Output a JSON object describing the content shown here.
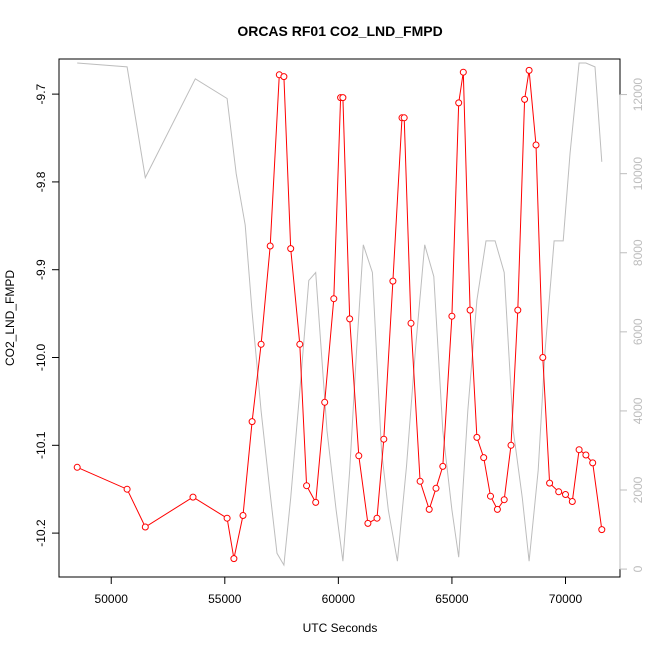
{
  "chart_data": {
    "type": "line",
    "title": "ORCAS RF01 CO2_LND_FMPD",
    "xlabel": "UTC Seconds",
    "ylabel": "CO2_LND_FMPD",
    "xlim": [
      47700,
      72400
    ],
    "ylim": [
      -10.25,
      -9.66
    ],
    "y2lim": [
      -200,
      12900
    ],
    "x_ticks": [
      50000,
      55000,
      60000,
      65000,
      70000
    ],
    "y_ticks": [
      -10.2,
      -10.1,
      -10.0,
      -9.9,
      -9.8,
      -9.7
    ],
    "y2_ticks": [
      0,
      2000,
      4000,
      6000,
      8000,
      10000,
      12000
    ],
    "x_tick_labels": [
      "50000",
      "55000",
      "60000",
      "65000",
      "70000"
    ],
    "y_tick_labels": [
      "-10.2",
      "-10.1",
      "-10.0",
      "-9.9",
      "-9.8",
      "-9.7"
    ],
    "y2_tick_labels": [
      "0",
      "2000",
      "4000",
      "6000",
      "8000",
      "10000",
      "12000"
    ],
    "colors": {
      "primary": "#ff0000",
      "secondary": "#bdbdbd"
    },
    "series": [
      {
        "axis": "left",
        "style": "line+markers",
        "color": "#ff0000",
        "x": [
          48500,
          50700,
          51500,
          53600,
          55100,
          55400,
          55800,
          56200,
          56600,
          57000,
          57400,
          57600,
          57900,
          58300,
          58600,
          59000,
          59400,
          59800,
          60100,
          60200,
          60500,
          60900,
          61300,
          61700,
          62000,
          62400,
          62800,
          62900,
          63200,
          63600,
          64000,
          64300,
          64600,
          65000,
          65300,
          65500,
          65800,
          66100,
          66400,
          66700,
          67000,
          67300,
          67600,
          67900,
          68200,
          68400,
          68700,
          69000,
          69300,
          69700,
          70000,
          70300,
          70600,
          70900,
          71200,
          71600
        ],
        "y": [
          -10.125,
          -10.15,
          -10.193,
          -10.159,
          -10.183,
          -10.229,
          -10.18,
          -10.073,
          -9.985,
          -9.873,
          -9.678,
          -9.68,
          -9.876,
          -9.985,
          -10.146,
          -10.165,
          -10.051,
          -9.933,
          -9.704,
          -9.704,
          -9.956,
          -10.112,
          -10.189,
          -10.183,
          -10.093,
          -9.913,
          -9.727,
          -9.727,
          -9.961,
          -10.141,
          -10.173,
          -10.149,
          -10.124,
          -9.953,
          -9.71,
          -9.675,
          -9.946,
          -10.091,
          -10.114,
          -10.158,
          -10.173,
          -10.162,
          -10.1,
          -9.946,
          -9.706,
          -9.673,
          -9.758,
          -10.0,
          -10.143,
          -10.153,
          -10.156,
          -10.164,
          -10.105,
          -10.111,
          -10.12,
          -10.196
        ]
      },
      {
        "axis": "right",
        "style": "line",
        "color": "#bdbdbd",
        "x": [
          48500,
          50700,
          51500,
          53700,
          55100,
          55500,
          55900,
          56200,
          56600,
          57000,
          57300,
          57600,
          57900,
          58300,
          58700,
          59000,
          59500,
          59900,
          60200,
          60500,
          60800,
          61100,
          61500,
          61900,
          62200,
          62600,
          63000,
          63400,
          63800,
          64200,
          64600,
          65000,
          65300,
          65700,
          66100,
          66500,
          66900,
          67300,
          67700,
          68100,
          68400,
          68800,
          69100,
          69500,
          69900,
          70200,
          70600,
          70900,
          71300,
          71600
        ],
        "y": [
          12800,
          12700,
          9900,
          12400,
          11900,
          10000,
          8700,
          6500,
          4000,
          1900,
          400,
          100,
          1800,
          4500,
          7300,
          7500,
          3500,
          1500,
          200,
          2500,
          5500,
          8200,
          7500,
          3000,
          1500,
          200,
          2600,
          5600,
          8200,
          7400,
          3500,
          1500,
          300,
          4000,
          6800,
          8300,
          8300,
          7500,
          3500,
          1800,
          200,
          2500,
          5500,
          8300,
          8300,
          10500,
          12800,
          12800,
          12700,
          10300
        ]
      }
    ]
  }
}
